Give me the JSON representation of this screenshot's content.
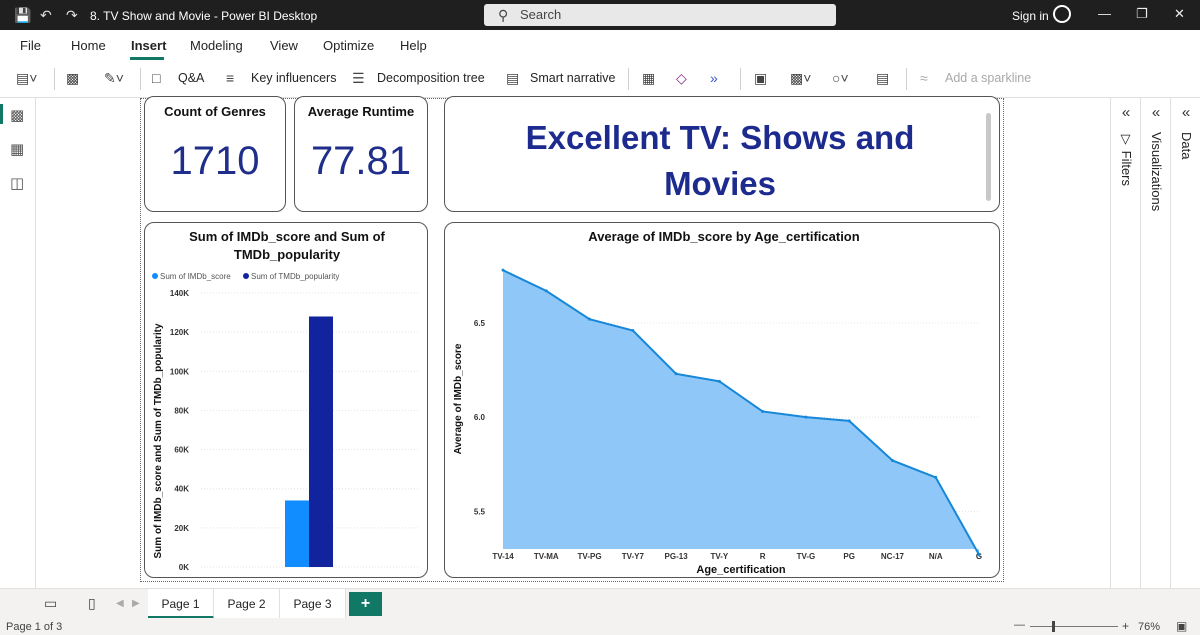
{
  "window": {
    "title": "8. TV Show and Movie - Power BI Desktop",
    "search_placeholder": "Search",
    "sign_in": "Sign in",
    "minimize_icon": "minimize-icon",
    "maximize_icon": "restore-icon",
    "close_icon": "close-icon"
  },
  "menu": [
    "File",
    "Home",
    "Insert",
    "Modeling",
    "View",
    "Optimize",
    "Help"
  ],
  "menu_active": "Insert",
  "ribbon": {
    "qa": "Q&A",
    "key_influencers": "Key influencers",
    "decomposition_tree": "Decomposition tree",
    "smart_narrative": "Smart narrative",
    "add_sparkline": "Add a sparkline"
  },
  "cards": {
    "genres": {
      "label": "Count of Genres",
      "value": "1710"
    },
    "runtime": {
      "label": "Average Runtime",
      "value": "77.81"
    }
  },
  "report_title": {
    "line1": "Excellent TV: Shows and",
    "line2": "Movies"
  },
  "panes": {
    "filters": "Filters",
    "visualizations": "Visualizations",
    "data": "Data"
  },
  "pages": {
    "tabs": [
      "Page 1",
      "Page 2",
      "Page 3"
    ],
    "active": "Page 1",
    "add": "+"
  },
  "status": {
    "page_info": "Page 1 of 3",
    "zoom": "76%",
    "minus": "—",
    "plus": "+"
  },
  "colors": {
    "accent": "#117865",
    "bar1": "#118dff",
    "bar2": "#12239e",
    "area_fill": "#8ec7f8",
    "area_line": "#1787d8",
    "title_text": "#1d2b8f"
  },
  "chart_data": [
    {
      "type": "bar",
      "title_line1": "Sum of IMDb_score and Sum of",
      "title_line2": "TMDb_popularity",
      "ylabel": "Sum of IMDb_score and Sum of TMDb_popularity",
      "categories": [
        ""
      ],
      "series": [
        {
          "name": "Sum of IMDb_score",
          "values": [
            34000
          ]
        },
        {
          "name": "Sum of TMDb_popularity",
          "values": [
            128000
          ]
        }
      ],
      "ylim": [
        0,
        140000
      ],
      "yticks": [
        0,
        20000,
        40000,
        60000,
        80000,
        100000,
        120000,
        140000
      ],
      "ytick_labels": [
        "0K",
        "20K",
        "40K",
        "60K",
        "80K",
        "100K",
        "120K",
        "140K"
      ],
      "legend": "top-left",
      "grid": true
    },
    {
      "type": "area",
      "title": "Average of IMDb_score by Age_certification",
      "xlabel": "Age_certification",
      "ylabel": "Average of IMDb_score",
      "categories": [
        "TV-14",
        "TV-MA",
        "TV-PG",
        "TV-Y7",
        "PG-13",
        "TV-Y",
        "R",
        "TV-G",
        "PG",
        "NC-17",
        "N/A",
        "G"
      ],
      "values": [
        6.78,
        6.67,
        6.52,
        6.46,
        6.23,
        6.19,
        6.03,
        6.0,
        5.98,
        5.77,
        5.68,
        5.27
      ],
      "ylim": [
        5.3,
        6.85
      ],
      "yticks": [
        5.5,
        6.0,
        6.5
      ],
      "ytick_labels": [
        "5.5",
        "6.0",
        "6.5"
      ],
      "grid": true
    }
  ]
}
